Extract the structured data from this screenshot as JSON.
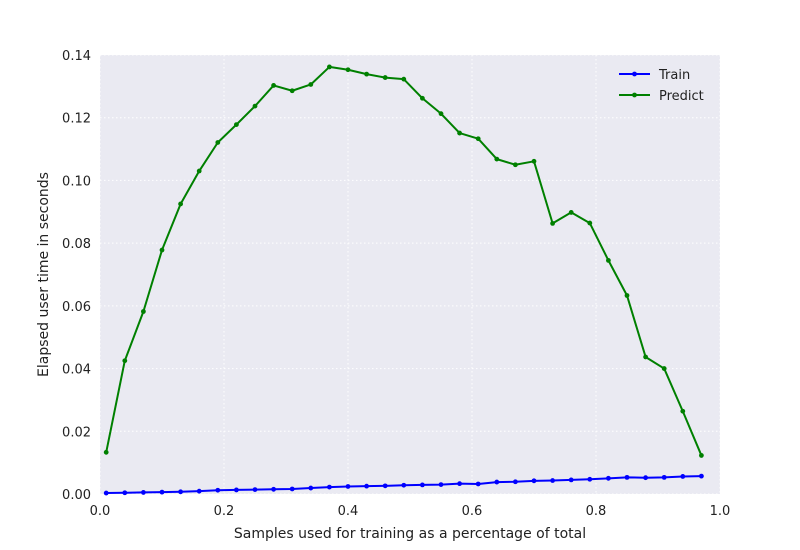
{
  "chart_data": {
    "type": "line",
    "title": "",
    "xlabel": "Samples used for training as a percentage of total",
    "ylabel": "Elapsed user time in seconds",
    "xlim": [
      0.0,
      1.0
    ],
    "ylim": [
      0.0,
      0.14
    ],
    "xticks": [
      "0.0",
      "0.2",
      "0.4",
      "0.6",
      "0.8",
      "1.0"
    ],
    "yticks": [
      "0.00",
      "0.02",
      "0.04",
      "0.06",
      "0.08",
      "0.10",
      "0.12",
      "0.14"
    ],
    "grid": true,
    "legend_position": "top-right",
    "x": [
      0.01,
      0.04,
      0.07,
      0.1,
      0.13,
      0.16,
      0.19,
      0.22,
      0.25,
      0.28,
      0.31,
      0.34,
      0.37,
      0.4,
      0.43,
      0.46,
      0.49,
      0.52,
      0.55,
      0.58,
      0.61,
      0.64,
      0.67,
      0.7,
      0.73,
      0.76,
      0.79,
      0.82,
      0.85,
      0.88,
      0.91,
      0.94,
      0.97
    ],
    "series": [
      {
        "name": "Train",
        "color": "#0000ff",
        "values": [
          0.0003,
          0.0004,
          0.0005,
          0.0006,
          0.0007,
          0.0009,
          0.0012,
          0.0013,
          0.0014,
          0.0015,
          0.0016,
          0.0019,
          0.0022,
          0.0024,
          0.0025,
          0.0026,
          0.0028,
          0.0029,
          0.003,
          0.0033,
          0.0032,
          0.0038,
          0.0039,
          0.0042,
          0.0043,
          0.0045,
          0.0047,
          0.005,
          0.0053,
          0.0052,
          0.0053,
          0.0056,
          0.0057
        ]
      },
      {
        "name": "Predict",
        "color": "#008000",
        "values": [
          0.0133,
          0.0425,
          0.0582,
          0.0778,
          0.0925,
          0.103,
          0.1121,
          0.1178,
          0.1237,
          0.1303,
          0.1286,
          0.1306,
          0.1362,
          0.1353,
          0.1339,
          0.1328,
          0.1323,
          0.1262,
          0.1213,
          0.1151,
          0.1133,
          0.1068,
          0.105,
          0.1061,
          0.0863,
          0.0898,
          0.0864,
          0.0745,
          0.0633,
          0.0437,
          0.04,
          0.0264,
          0.0123
        ]
      }
    ]
  }
}
